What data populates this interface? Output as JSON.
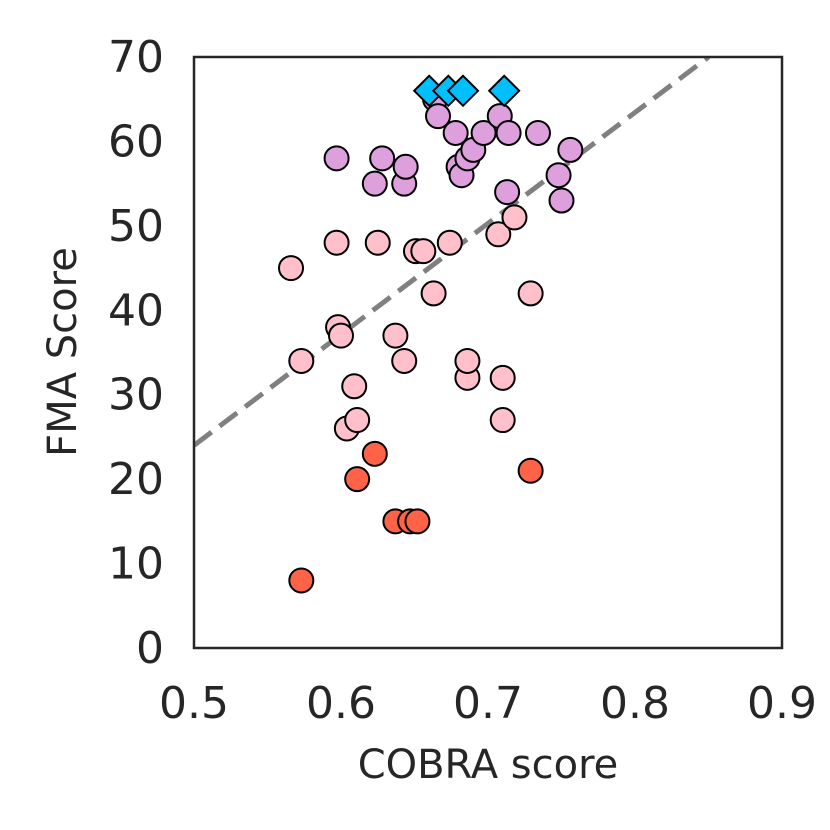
{
  "chart_data": {
    "type": "scatter",
    "title": "",
    "xlabel": "COBRA score",
    "ylabel": "FMA Score",
    "xlim": [
      0.5,
      0.9
    ],
    "ylim": [
      0,
      70
    ],
    "xticks": [
      "0.5",
      "0.6",
      "0.7",
      "0.8",
      "0.9"
    ],
    "yticks": [
      "0",
      "10",
      "20",
      "30",
      "40",
      "50",
      "60",
      "70"
    ],
    "grid": false,
    "legend": "none",
    "trendline": {
      "style": "dashed",
      "color": "#808080",
      "points": [
        [
          0.5,
          24
        ],
        [
          0.85,
          70
        ]
      ]
    },
    "series": [
      {
        "marker": "circle",
        "color": "#FF6347",
        "points": [
          [
            0.573,
            8
          ],
          [
            0.611,
            20
          ],
          [
            0.623,
            23
          ],
          [
            0.637,
            15
          ],
          [
            0.647,
            15
          ],
          [
            0.652,
            15
          ],
          [
            0.729,
            21
          ]
        ]
      },
      {
        "marker": "circle",
        "color": "#FFC0CB",
        "points": [
          [
            0.566,
            45
          ],
          [
            0.573,
            34
          ],
          [
            0.597,
            48
          ],
          [
            0.598,
            38
          ],
          [
            0.6,
            37
          ],
          [
            0.604,
            26
          ],
          [
            0.609,
            31
          ],
          [
            0.611,
            27
          ],
          [
            0.625,
            48
          ],
          [
            0.637,
            37
          ],
          [
            0.643,
            34
          ],
          [
            0.651,
            47
          ],
          [
            0.656,
            47
          ],
          [
            0.663,
            42
          ],
          [
            0.674,
            48
          ],
          [
            0.686,
            32
          ],
          [
            0.686,
            34
          ],
          [
            0.707,
            49
          ],
          [
            0.71,
            32
          ],
          [
            0.71,
            27
          ],
          [
            0.718,
            51
          ],
          [
            0.729,
            42
          ]
        ]
      },
      {
        "marker": "circle",
        "color": "#DDA0DD",
        "points": [
          [
            0.597,
            58
          ],
          [
            0.623,
            55
          ],
          [
            0.628,
            58
          ],
          [
            0.643,
            55
          ],
          [
            0.644,
            57
          ],
          [
            0.664,
            65
          ],
          [
            0.666,
            63
          ],
          [
            0.678,
            61
          ],
          [
            0.68,
            57
          ],
          [
            0.682,
            56
          ],
          [
            0.686,
            58
          ],
          [
            0.69,
            59
          ],
          [
            0.697,
            61
          ],
          [
            0.708,
            63
          ],
          [
            0.713,
            54
          ],
          [
            0.714,
            61
          ],
          [
            0.734,
            61
          ],
          [
            0.748,
            56
          ],
          [
            0.75,
            53
          ],
          [
            0.756,
            59
          ]
        ]
      },
      {
        "marker": "diamond",
        "color": "#00BFFF",
        "points": [
          [
            0.66,
            66
          ],
          [
            0.673,
            66
          ],
          [
            0.683,
            66
          ],
          [
            0.711,
            66
          ]
        ]
      }
    ]
  }
}
